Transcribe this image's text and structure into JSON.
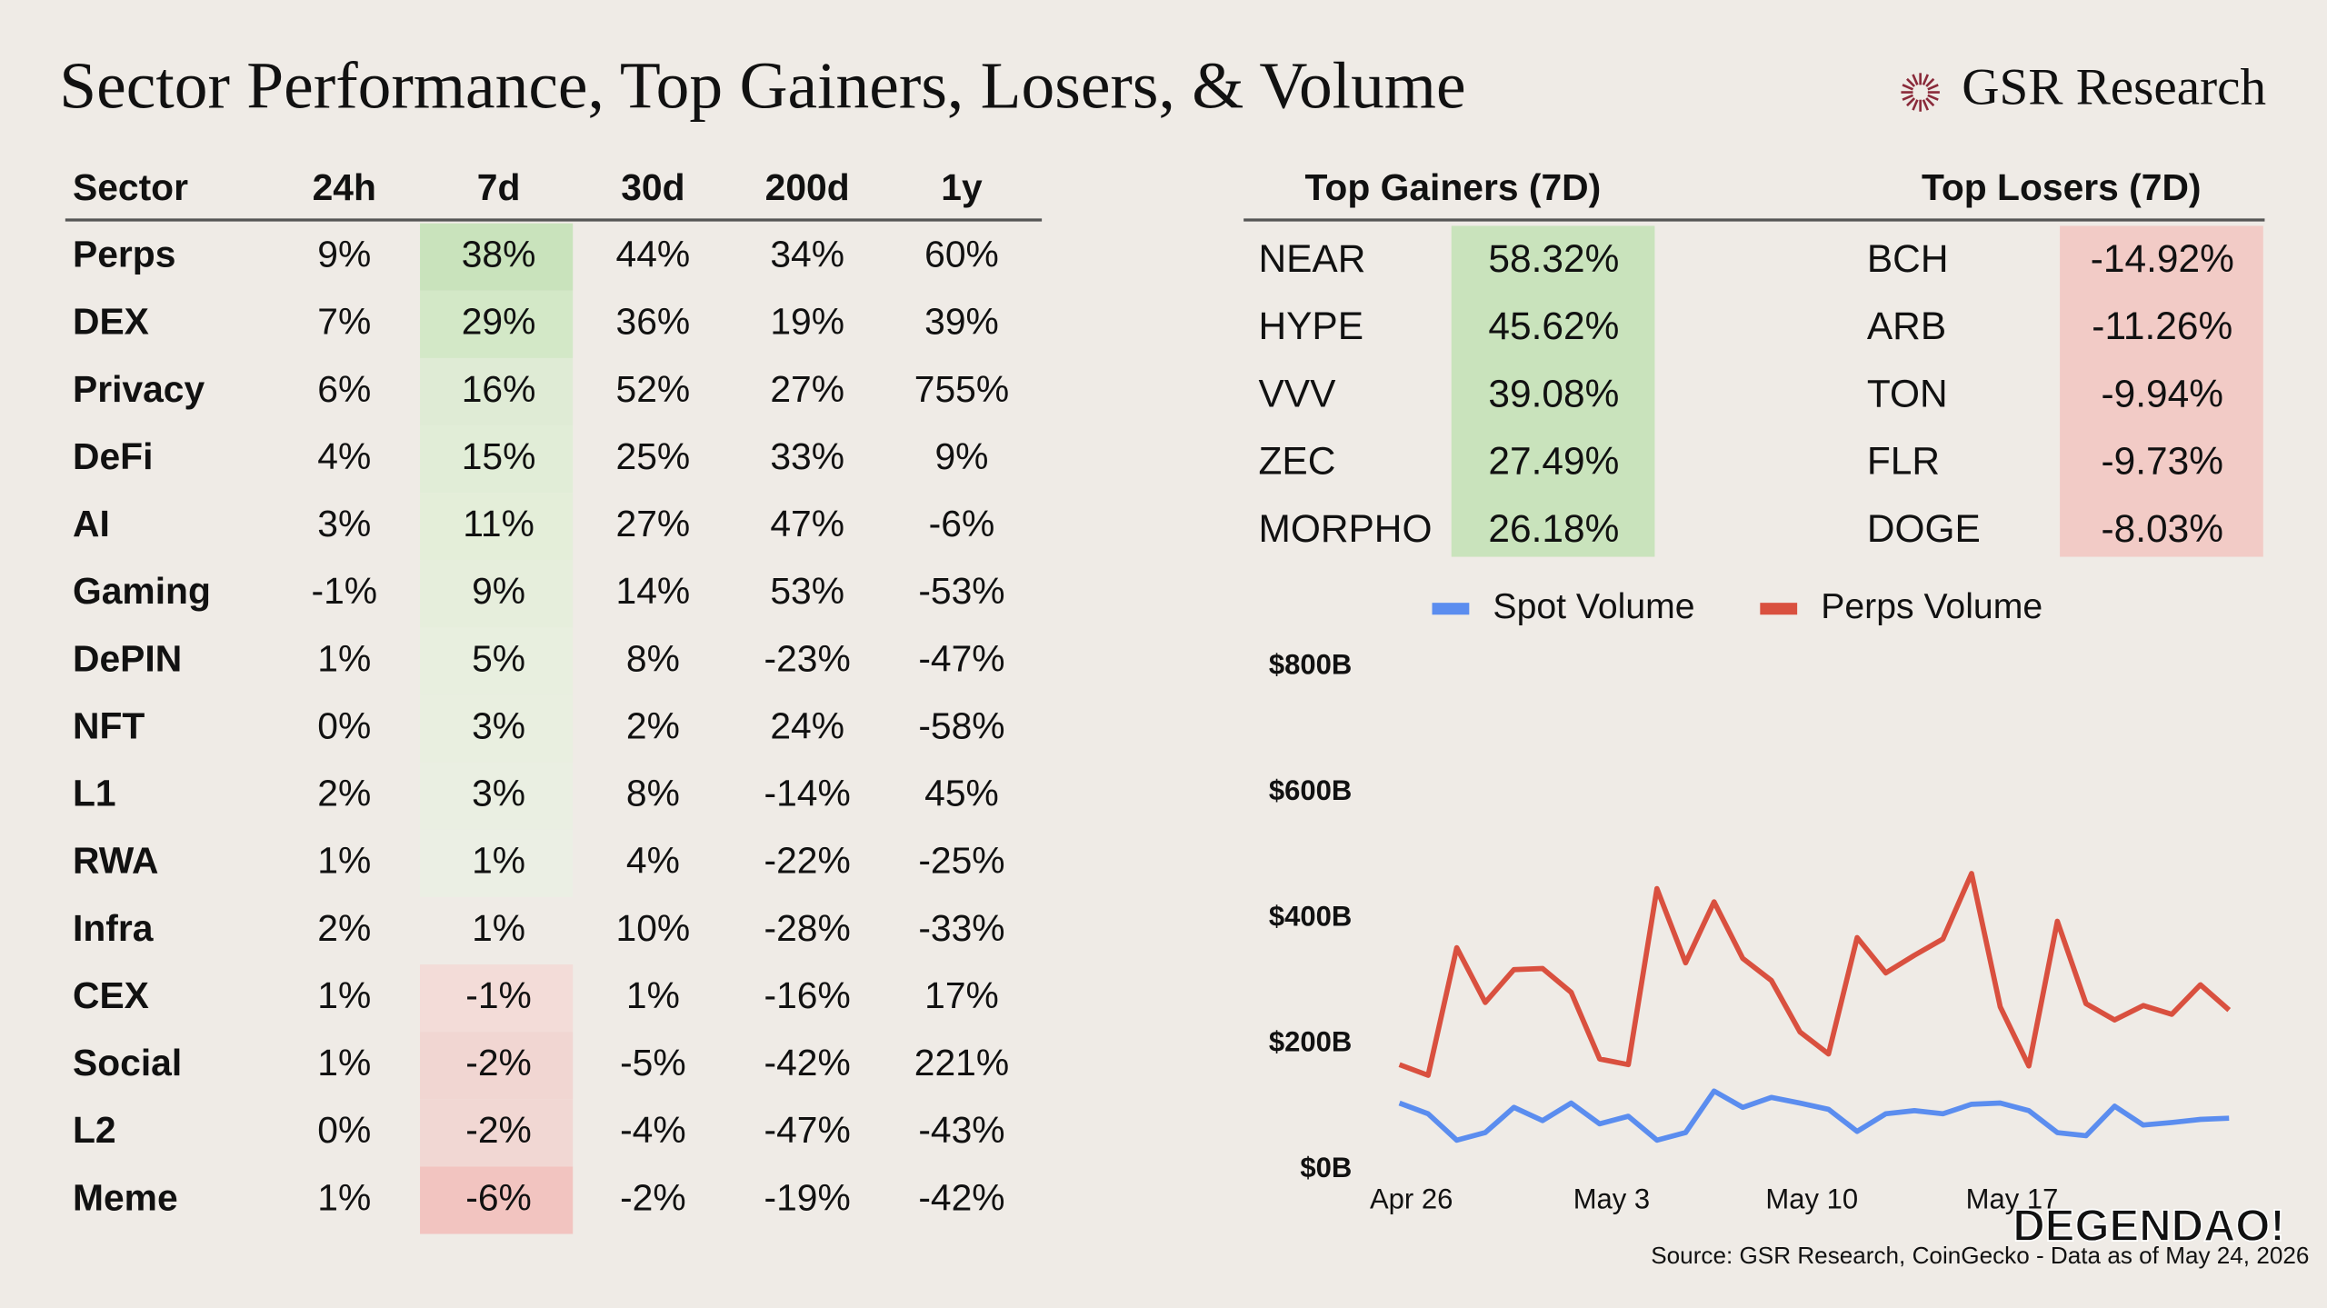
{
  "header": {
    "title": "Sector Performance, Top Gainers, Losers, & Volume",
    "brand": "GSR Research"
  },
  "sector_table": {
    "columns": [
      "Sector",
      "24h",
      "7d",
      "30d",
      "200d",
      "1y"
    ],
    "rows": [
      [
        "Perps",
        "9%",
        "38%",
        "44%",
        "34%",
        "60%"
      ],
      [
        "DEX",
        "7%",
        "29%",
        "36%",
        "19%",
        "39%"
      ],
      [
        "Privacy",
        "6%",
        "16%",
        "52%",
        "27%",
        "755%"
      ],
      [
        "DeFi",
        "4%",
        "15%",
        "25%",
        "33%",
        "9%"
      ],
      [
        "AI",
        "3%",
        "11%",
        "27%",
        "47%",
        "-6%"
      ],
      [
        "Gaming",
        "-1%",
        "9%",
        "14%",
        "53%",
        "-53%"
      ],
      [
        "DePIN",
        "1%",
        "5%",
        "8%",
        "-23%",
        "-47%"
      ],
      [
        "NFT",
        "0%",
        "3%",
        "2%",
        "24%",
        "-58%"
      ],
      [
        "L1",
        "2%",
        "3%",
        "8%",
        "-14%",
        "45%"
      ],
      [
        "RWA",
        "1%",
        "1%",
        "4%",
        "-22%",
        "-25%"
      ],
      [
        "Infra",
        "2%",
        "1%",
        "10%",
        "-28%",
        "-33%"
      ],
      [
        "CEX",
        "1%",
        "-1%",
        "1%",
        "-16%",
        "17%"
      ],
      [
        "Social",
        "1%",
        "-2%",
        "-5%",
        "-42%",
        "221%"
      ],
      [
        "L2",
        "0%",
        "-2%",
        "-4%",
        "-47%",
        "-43%"
      ],
      [
        "Meme",
        "1%",
        "-6%",
        "-2%",
        "-19%",
        "-42%"
      ]
    ],
    "highlight_colors": [
      "#c9e3bc",
      "#d3e8c7",
      "#dfebd5",
      "#e1edd7",
      "#e4eed9",
      "#e6eedc",
      "#e8efdf",
      "#e9efe0",
      "#eaefe2",
      "#ebefe4",
      null,
      "#f3dcd8",
      "#f1d6d2",
      "#f1d7d3",
      "#f2c4c0"
    ],
    "highlight_text_colors": [
      "#3d7a3d",
      "#3d7a3d",
      "#3d7a3d",
      "#3d7a3d",
      "#3d7a3d",
      "#3d7a3d",
      "#3d7a3d",
      "#3d7a3d",
      "#3d7a3d",
      "#3d7a3d",
      "#111111",
      "#a3403a",
      "#a3403a",
      "#a3403a",
      "#a3403a"
    ]
  },
  "gainers": {
    "title": "Top Gainers (7D)",
    "color": "#c9e3bc",
    "text_color": "#3d7a3d",
    "rows": [
      [
        "NEAR",
        "58.32%"
      ],
      [
        "HYPE",
        "45.62%"
      ],
      [
        "VVV",
        "39.08%"
      ],
      [
        "ZEC",
        "27.49%"
      ],
      [
        "MORPHO",
        "26.18%"
      ]
    ]
  },
  "losers": {
    "title": "Top Losers (7D)",
    "color": "#f2cbc6",
    "text_color": "#b03a35",
    "rows": [
      [
        "BCH",
        "-14.92%"
      ],
      [
        "ARB",
        "-11.26%"
      ],
      [
        "TON",
        "-9.94%"
      ],
      [
        "FLR",
        "-9.73%"
      ],
      [
        "DOGE",
        "-8.03%"
      ]
    ]
  },
  "chart_data": {
    "type": "line",
    "categories": [
      "Apr 26",
      null,
      null,
      null,
      null,
      null,
      null,
      "May 3",
      null,
      null,
      null,
      null,
      null,
      null,
      "May 10",
      null,
      null,
      null,
      null,
      null,
      null,
      "May 17",
      null,
      null,
      null,
      null,
      null,
      null,
      null,
      null
    ],
    "series": [
      {
        "name": "Spot Volume",
        "color": "#5b8def",
        "values": [
          106,
          89,
          47,
          59,
          99,
          78,
          106,
          73,
          85,
          47,
          59,
          125,
          99,
          115,
          106,
          96,
          61,
          89,
          94,
          89,
          104,
          106,
          94,
          59,
          54,
          101,
          71,
          75,
          80,
          82
        ]
      },
      {
        "name": "Perps Volume",
        "color": "#d9503f",
        "values": [
          167,
          150,
          353,
          266,
          318,
          320,
          282,
          176,
          167,
          447,
          329,
          426,
          336,
          301,
          219,
          184,
          369,
          313,
          341,
          367,
          471,
          259,
          165,
          395,
          264,
          238,
          261,
          247,
          294,
          254
        ]
      }
    ],
    "ylim": [
      0,
      800
    ],
    "yticks": [
      {
        "value": 0,
        "label": "$0B"
      },
      {
        "value": 200,
        "label": "$200B"
      },
      {
        "value": 400,
        "label": "$400B"
      },
      {
        "value": 600,
        "label": "$600B"
      },
      {
        "value": 800,
        "label": "$800B"
      }
    ],
    "grid": false,
    "legend": "top"
  },
  "source": "Source: GSR Research, CoinGecko - Data as of May 24, 2026",
  "watermark": "DEGENDAO!"
}
